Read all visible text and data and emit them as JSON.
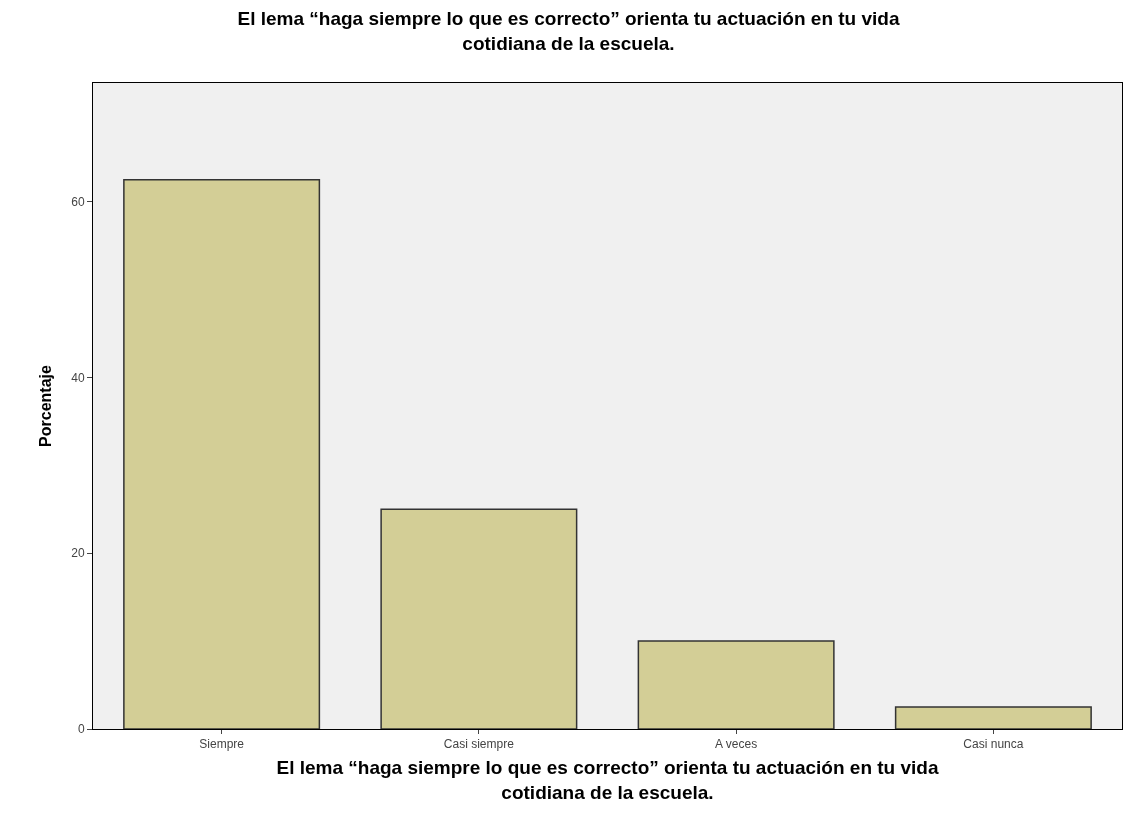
{
  "chart_data": {
    "type": "bar",
    "title": "El lema “haga siempre lo que es correcto” orienta tu actuación en tu vida cotidiana de la escuela.",
    "xlabel": "El lema “haga siempre lo que es correcto” orienta tu actuación en tu vida cotidiana de la escuela.",
    "ylabel": "Porcentaje",
    "categories": [
      "Siempre",
      "Casi siempre",
      "A veces",
      "Casi nunca"
    ],
    "values": [
      62.5,
      25,
      10,
      2.5
    ],
    "color": "#d3ce96",
    "ylim": [
      0,
      73.5
    ],
    "yticks": [
      0,
      20,
      40,
      60
    ],
    "grid": false,
    "legend": false
  }
}
